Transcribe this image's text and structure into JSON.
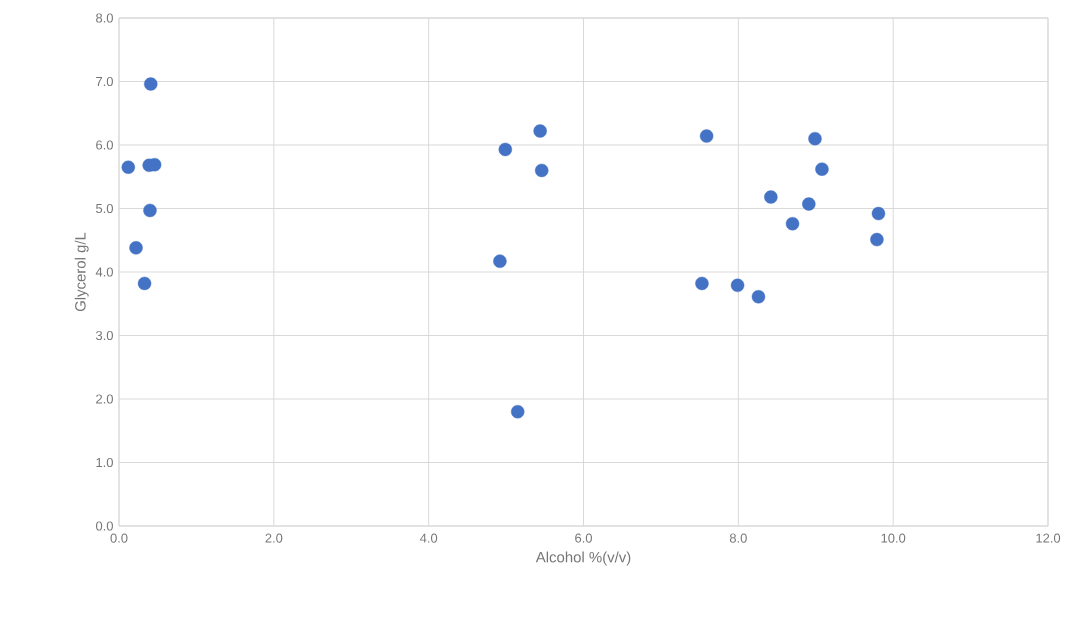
{
  "chart_data": {
    "type": "scatter",
    "xlabel": "Alcohol %(v/v)",
    "ylabel": "Glycerol g/L",
    "x": [
      0.41,
      0.12,
      0.39,
      0.46,
      0.4,
      0.22,
      0.33,
      4.99,
      5.44,
      5.46,
      4.92,
      5.15,
      7.59,
      8.99,
      9.08,
      8.42,
      8.91,
      8.7,
      9.81,
      9.79,
      7.53,
      7.99,
      8.2,
      8.26
    ],
    "values": [
      6.96,
      5.65,
      5.68,
      5.69,
      4.97,
      4.38,
      3.82,
      5.93,
      6.22,
      5.6,
      4.17,
      1.8,
      6.14,
      6.1,
      5.62,
      5.18,
      5.07,
      4.76,
      4.92,
      4.51,
      3.82,
      3.79,
      null,
      3.61
    ],
    "color": "#4472c4",
    "marker": "circle",
    "grid": true,
    "xlim": [
      0,
      12
    ],
    "ylim": [
      0,
      8
    ],
    "xticks": [
      {
        "value": 0,
        "label": "0.0"
      },
      {
        "value": 2,
        "label": "2.0"
      },
      {
        "value": 4,
        "label": "4.0"
      },
      {
        "value": 6,
        "label": "6.0"
      },
      {
        "value": 8,
        "label": "8.0"
      },
      {
        "value": 10,
        "label": "10.0"
      },
      {
        "value": 12,
        "label": "12.0"
      }
    ],
    "yticks": [
      {
        "value": 0,
        "label": "0.0"
      },
      {
        "value": 1,
        "label": "1.0"
      },
      {
        "value": 2,
        "label": "2.0"
      },
      {
        "value": 3,
        "label": "3.0"
      },
      {
        "value": 4,
        "label": "4.0"
      },
      {
        "value": 5,
        "label": "5.0"
      },
      {
        "value": 6,
        "label": "6.0"
      },
      {
        "value": 7,
        "label": "7.0"
      },
      {
        "value": 8,
        "label": "8.0"
      }
    ]
  }
}
